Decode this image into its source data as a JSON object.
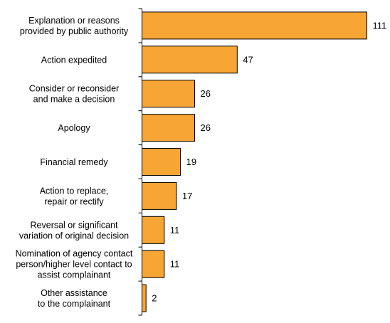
{
  "chart_data": {
    "type": "bar",
    "orientation": "horizontal",
    "title": "",
    "xlabel": "",
    "ylabel": "",
    "categories": [
      [
        "Explanation or reasons",
        "provided by public authority"
      ],
      [
        "Action expedited"
      ],
      [
        "Consider or reconsider",
        "and make a decision"
      ],
      [
        "Apology"
      ],
      [
        "Financial remedy"
      ],
      [
        "Action to replace,",
        "repair or rectify"
      ],
      [
        "Reversal or significant",
        "variation of original decision"
      ],
      [
        "Nomination of agency contact",
        "person/higher level contact to",
        "assist complainant"
      ],
      [
        "Other assistance",
        "to the complainant"
      ]
    ],
    "values": [
      111,
      47,
      26,
      26,
      19,
      17,
      11,
      11,
      2
    ],
    "value_labels": [
      "111",
      "47",
      "26",
      "26",
      "19",
      "17",
      "11",
      "11",
      "2"
    ],
    "xlim": [
      0,
      111
    ],
    "grid": false,
    "legend": "none",
    "bar_color": "#F7A535",
    "bar_edge_color": "#000000"
  }
}
